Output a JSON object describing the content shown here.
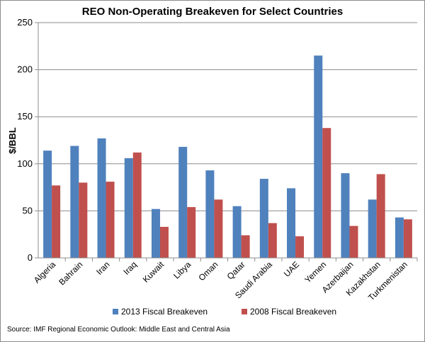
{
  "chart_data": {
    "type": "bar",
    "title": "REO Non-Operating Breakeven for Select Countries",
    "xlabel": "",
    "ylabel": "$/BBL",
    "ylim": [
      0,
      250
    ],
    "yticks": [
      0,
      50,
      100,
      150,
      200,
      250
    ],
    "grid": true,
    "legend_position": "bottom",
    "categories": [
      "Algeria",
      "Bahrain",
      "Iran",
      "Iraq",
      "Kuwait",
      "Libya",
      "Oman",
      "Qatar",
      "Saudi Arabia",
      "UAE",
      "Yemen",
      "Azerbaijan",
      "Kazakhstan",
      "Turkmenistan"
    ],
    "series": [
      {
        "name": "2013 Fiscal Breakeven",
        "color": "#4f81bd",
        "values": [
          114,
          119,
          127,
          106,
          52,
          118,
          93,
          55,
          84,
          74,
          215,
          90,
          62,
          43
        ]
      },
      {
        "name": "2008 Fiscal Breakeven",
        "color": "#c0504d",
        "values": [
          77,
          80,
          81,
          112,
          33,
          54,
          62,
          24,
          37,
          23,
          138,
          34,
          89,
          41
        ]
      }
    ]
  },
  "source": "Source: IMF Regional Economic Outlook: Middle East and Central Asia"
}
